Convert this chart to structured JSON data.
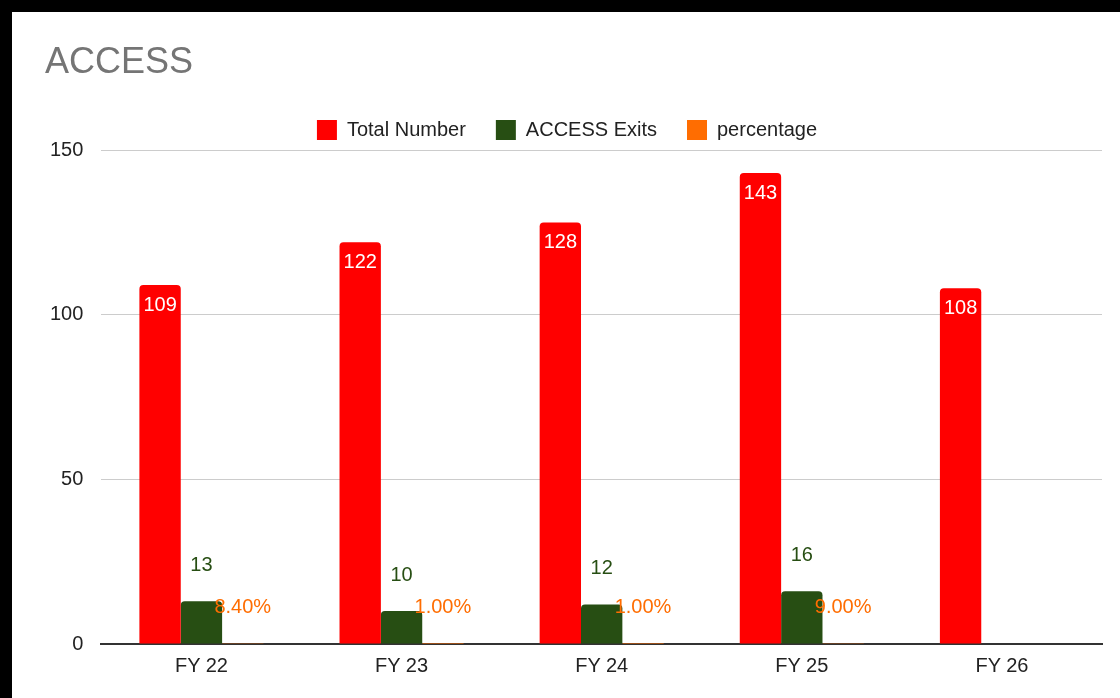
{
  "chart_data": {
    "type": "bar",
    "title": "ACCESS",
    "categories": [
      "FY 22",
      "FY 23",
      "FY 24",
      "FY 25",
      "FY 26"
    ],
    "series": [
      {
        "name": "Total Number",
        "color": "#ff0000",
        "values": [
          109,
          122,
          128,
          143,
          108
        ]
      },
      {
        "name": "ACCESS Exits",
        "color": "#274e13",
        "values": [
          13,
          10,
          12,
          16,
          null
        ]
      },
      {
        "name": "percentage",
        "color": "#ff6d01",
        "values": [
          0.084,
          0.01,
          0.01,
          0.09,
          null
        ],
        "value_labels": [
          "8.40%",
          "1.00%",
          "1.00%",
          "9.00%",
          null
        ]
      }
    ],
    "ylim": [
      0,
      150
    ],
    "yticks": [
      0,
      50,
      100,
      150
    ],
    "grid": "y",
    "legend": "top",
    "data_labels": true
  }
}
